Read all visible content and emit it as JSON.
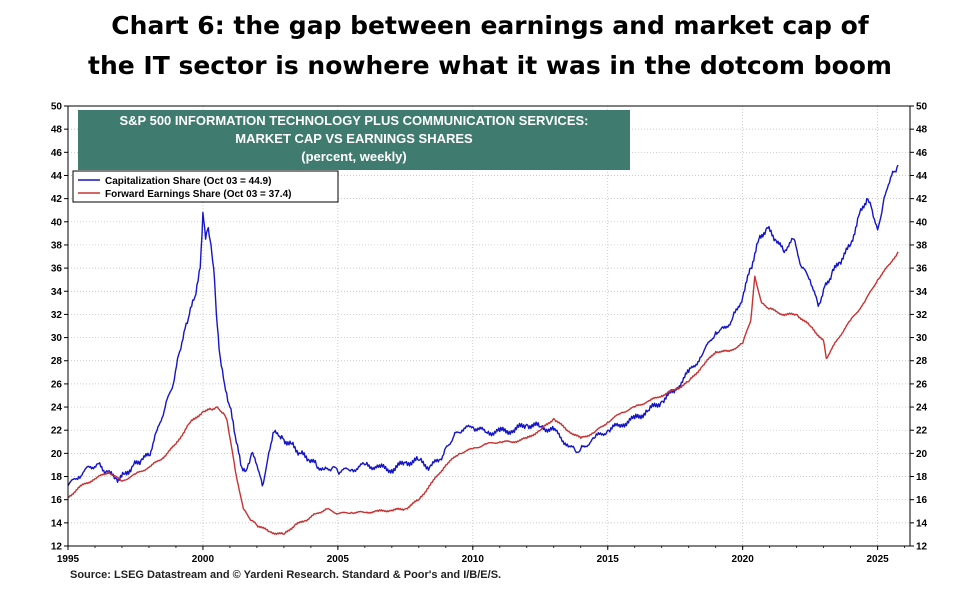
{
  "headline": {
    "line1": "Chart 6: the gap between earnings and market cap of",
    "line2": "the IT sector is nowhere what it was in the dotcom boom"
  },
  "chart_data": {
    "type": "line",
    "panel_title": [
      "S&P 500 INFORMATION TECHNOLOGY PLUS COMMUNICATION SERVICES:",
      "MARKET CAP VS EARNINGS SHARES",
      "(percent, weekly)"
    ],
    "xlim": [
      1995,
      2026.2
    ],
    "ylim": [
      12,
      50
    ],
    "x_ticks": [
      1995,
      2000,
      2005,
      2010,
      2015,
      2020,
      2025
    ],
    "y_ticks": [
      12,
      14,
      16,
      18,
      20,
      22,
      24,
      26,
      28,
      30,
      32,
      34,
      36,
      38,
      40,
      42,
      44,
      46,
      48,
      50
    ],
    "grid": true,
    "legend_position": "top-left",
    "series": [
      {
        "name": "Capitalization Share",
        "legend_label": "Capitalization Share  (Oct 03 = 44.9)",
        "color": "#1515c8",
        "x": [
          1995.0,
          1995.4,
          1995.8,
          1996.1,
          1996.4,
          1996.8,
          1997.1,
          1997.4,
          1997.7,
          1998.0,
          1998.3,
          1998.6,
          1998.9,
          1999.1,
          1999.3,
          1999.5,
          1999.7,
          1999.9,
          2000.0,
          2000.1,
          2000.2,
          2000.3,
          2000.4,
          2000.5,
          2000.6,
          2000.8,
          2001.0,
          2001.2,
          2001.4,
          2001.6,
          2001.8,
          2002.0,
          2002.2,
          2002.4,
          2002.6,
          2002.8,
          2003.0,
          2003.3,
          2003.6,
          2003.9,
          2004.2,
          2004.5,
          2004.8,
          2005.0,
          2005.5,
          2006.0,
          2006.5,
          2007.0,
          2007.5,
          2008.0,
          2008.4,
          2008.8,
          2009.0,
          2009.3,
          2009.6,
          2010.0,
          2010.5,
          2011.0,
          2011.5,
          2012.0,
          2012.5,
          2013.0,
          2013.5,
          2013.8,
          2014.0,
          2014.5,
          2015.0,
          2015.5,
          2016.0,
          2016.5,
          2017.0,
          2017.5,
          2018.0,
          2018.5,
          2019.0,
          2019.3,
          2019.6,
          2020.0,
          2020.3,
          2020.6,
          2020.9,
          2021.2,
          2021.5,
          2021.9,
          2022.2,
          2022.5,
          2022.8,
          2023.0,
          2023.3,
          2023.6,
          2024.0,
          2024.3,
          2024.6,
          2024.8,
          2025.0,
          2025.2,
          2025.4,
          2025.6,
          2025.76
        ],
        "y": [
          17.2,
          18.0,
          18.8,
          19.1,
          18.4,
          17.8,
          18.2,
          18.9,
          19.4,
          19.8,
          22.0,
          24.0,
          26.0,
          28.5,
          30.5,
          32.0,
          33.5,
          36.0,
          40.8,
          38.5,
          39.5,
          38.0,
          36.0,
          32.0,
          29.0,
          26.0,
          24.0,
          21.5,
          19.0,
          18.5,
          20.0,
          19.0,
          17.2,
          19.5,
          21.8,
          21.5,
          21.2,
          20.8,
          20.0,
          19.5,
          19.0,
          18.6,
          18.8,
          18.4,
          18.6,
          19.0,
          18.8,
          18.6,
          19.2,
          19.4,
          18.8,
          19.5,
          20.5,
          21.5,
          22.0,
          22.3,
          21.8,
          21.9,
          22.0,
          22.5,
          22.3,
          22.0,
          20.8,
          20.2,
          20.4,
          21.3,
          22.0,
          22.5,
          23.0,
          23.7,
          24.5,
          25.5,
          27.0,
          28.5,
          30.5,
          30.8,
          31.5,
          33.5,
          36.0,
          38.5,
          39.5,
          38.5,
          37.5,
          38.5,
          36.0,
          35.0,
          32.7,
          34.2,
          35.5,
          36.5,
          38.0,
          40.5,
          42.0,
          41.0,
          39.3,
          41.5,
          43.2,
          44.3,
          44.9
        ]
      },
      {
        "name": "Forward Earnings Share",
        "legend_label": "Forward Earnings Share (Oct 03 = 37.4)",
        "color": "#c83232",
        "x": [
          1995.0,
          1995.5,
          1996.0,
          1996.5,
          1997.0,
          1997.5,
          1998.0,
          1998.5,
          1999.0,
          1999.5,
          2000.0,
          2000.3,
          2000.5,
          2000.75,
          2000.9,
          2001.2,
          2001.5,
          2001.8,
          2002.0,
          2002.5,
          2003.0,
          2003.4,
          2003.8,
          2004.2,
          2004.6,
          2005.0,
          2005.5,
          2006.0,
          2006.5,
          2007.0,
          2007.5,
          2008.0,
          2008.5,
          2009.0,
          2009.5,
          2010.0,
          2010.5,
          2011.0,
          2011.5,
          2012.0,
          2012.5,
          2013.0,
          2013.5,
          2014.0,
          2014.5,
          2015.0,
          2015.5,
          2016.0,
          2016.5,
          2017.0,
          2017.5,
          2018.0,
          2018.5,
          2019.0,
          2019.5,
          2020.0,
          2020.3,
          2020.45,
          2020.7,
          2021.0,
          2021.5,
          2022.0,
          2022.5,
          2023.0,
          2023.1,
          2023.5,
          2024.0,
          2024.5,
          2025.0,
          2025.5,
          2025.76
        ],
        "y": [
          16.2,
          17.2,
          17.8,
          18.4,
          17.6,
          18.2,
          18.8,
          19.6,
          20.8,
          22.6,
          23.6,
          23.8,
          24.0,
          23.5,
          22.8,
          18.5,
          15.2,
          14.2,
          13.8,
          13.2,
          13.0,
          13.8,
          14.2,
          14.8,
          15.2,
          14.8,
          14.9,
          14.9,
          15.0,
          15.1,
          15.2,
          16.0,
          17.5,
          19.0,
          20.0,
          20.4,
          20.8,
          21.0,
          21.0,
          21.3,
          22.0,
          23.0,
          22.0,
          21.3,
          21.8,
          22.7,
          23.5,
          24.0,
          24.5,
          25.0,
          25.5,
          26.2,
          27.5,
          28.8,
          28.8,
          29.5,
          31.5,
          35.3,
          33.0,
          32.5,
          32.0,
          32.0,
          31.0,
          29.7,
          28.2,
          29.8,
          31.5,
          33.0,
          35.0,
          36.5,
          37.4
        ]
      }
    ],
    "source": "Source: LSEG Datastream and © Yardeni Research. Standard & Poor's and I/B/E/S."
  }
}
